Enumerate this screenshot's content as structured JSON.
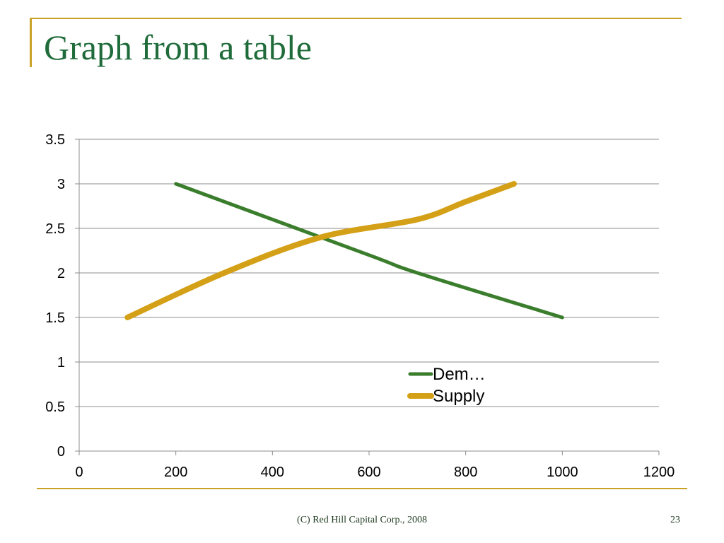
{
  "slide": {
    "title": "Graph from a table",
    "footer": "(C) Red Hill Capital Corp., 2008",
    "page_number": "23",
    "accent_color": "#c9a227",
    "title_color": "#1f6b3a"
  },
  "chart_data": {
    "type": "line",
    "title": "",
    "xlabel": "",
    "ylabel": "",
    "xlim": [
      0,
      1200
    ],
    "ylim": [
      0,
      3.5
    ],
    "x_ticks": [
      "0",
      "200",
      "400",
      "600",
      "800",
      "1000",
      "1200"
    ],
    "y_ticks": [
      "0",
      "0.5",
      "1",
      "1.5",
      "2",
      "2.5",
      "3",
      "3.5"
    ],
    "grid": "horizontal",
    "legend_position": "inside-bottom-right",
    "series": [
      {
        "name": "Dem…",
        "color": "#3a7d2c",
        "points": [
          [
            200,
            3.0
          ],
          [
            600,
            2.2
          ],
          [
            700,
            2.0
          ],
          [
            1000,
            1.5
          ]
        ]
      },
      {
        "name": "Supply",
        "color": "#d4a017",
        "points": [
          [
            100,
            1.5
          ],
          [
            300,
            2.0
          ],
          [
            500,
            2.4
          ],
          [
            700,
            2.6
          ],
          [
            800,
            2.8
          ],
          [
            900,
            3.0
          ]
        ]
      }
    ]
  }
}
